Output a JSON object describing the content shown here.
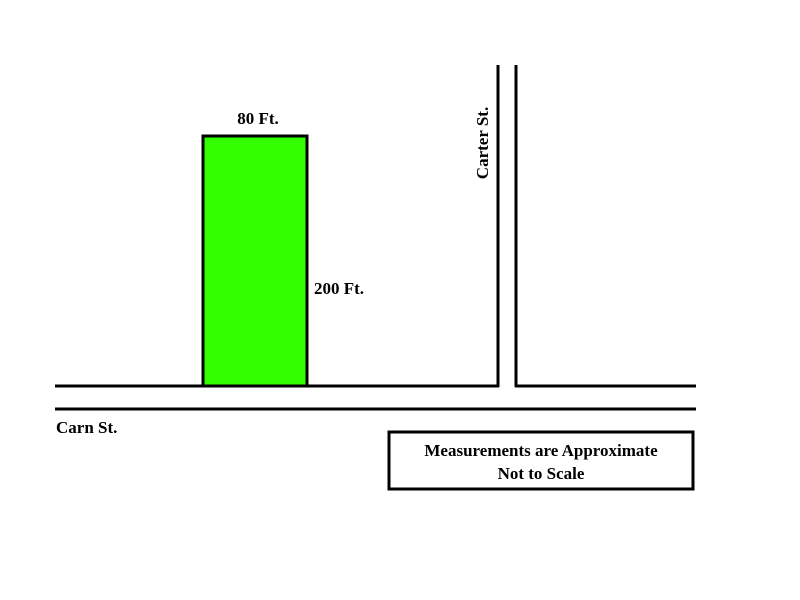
{
  "lot": {
    "width_label": "80 Ft.",
    "depth_label": "200 Ft."
  },
  "streets": {
    "horizontal": "Carn St.",
    "vertical": "Carter St."
  },
  "note": {
    "line1": "Measurements are Approximate",
    "line2": "Not to Scale"
  }
}
